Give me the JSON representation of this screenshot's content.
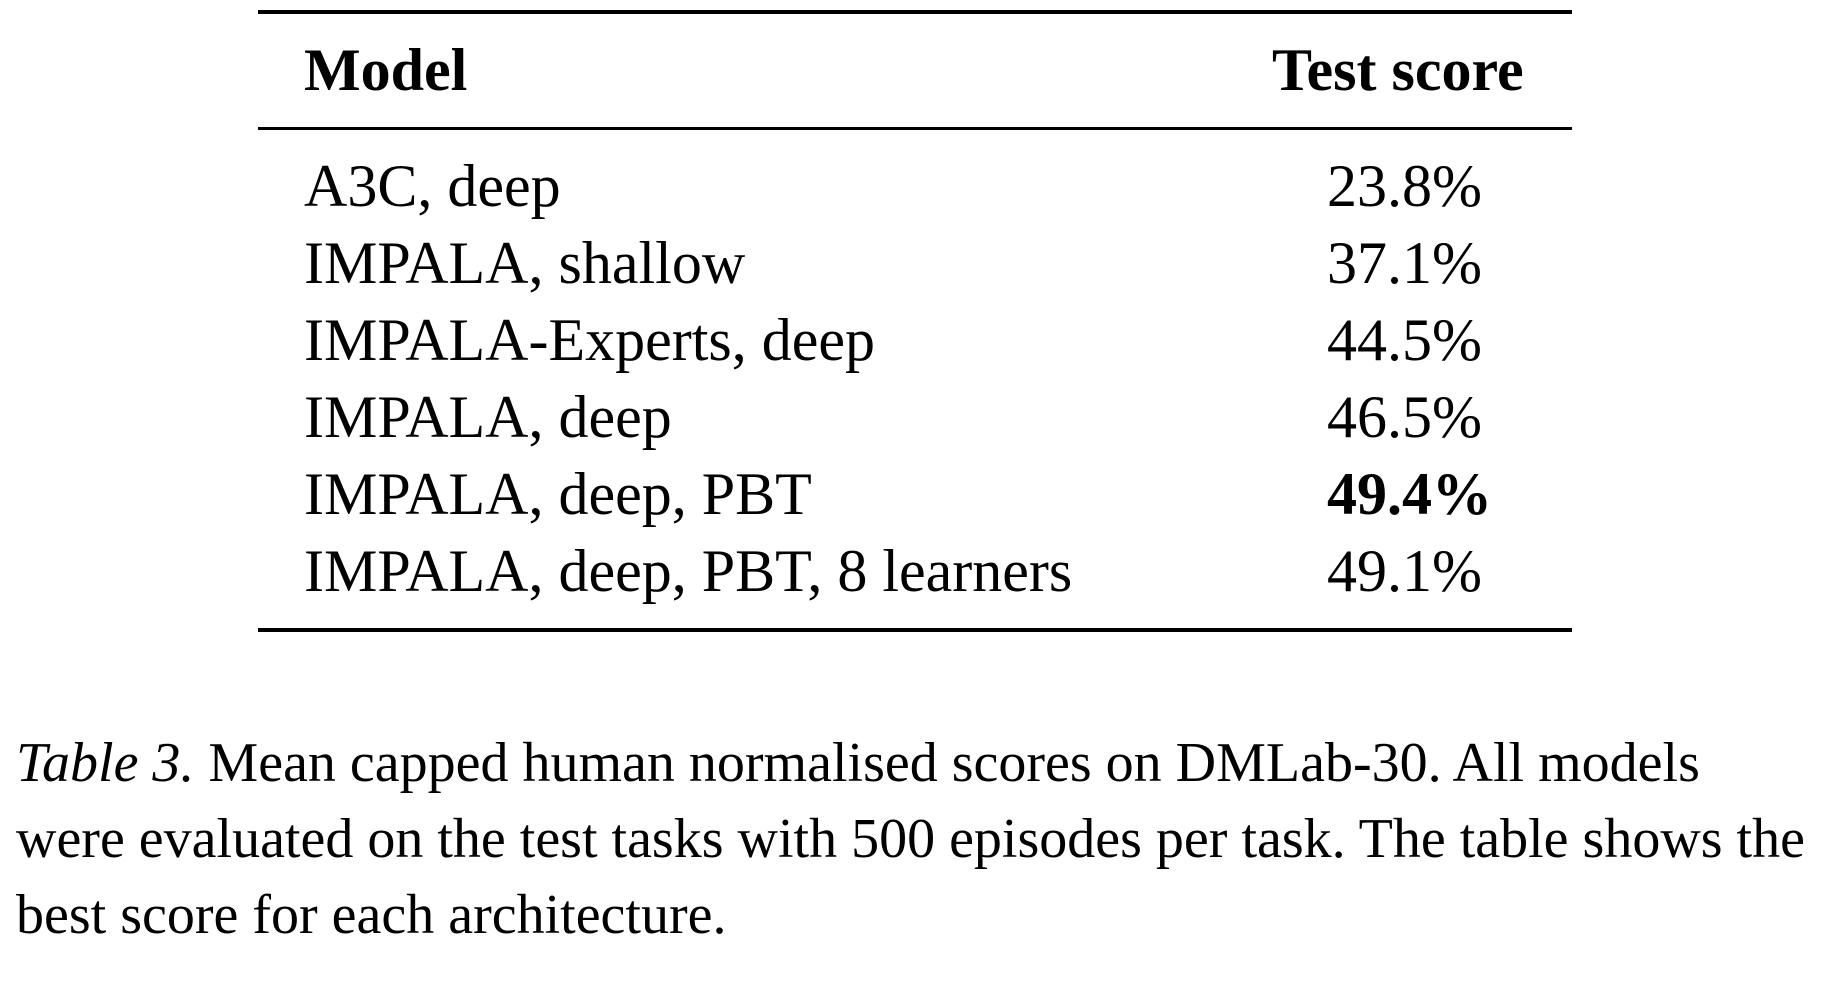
{
  "table": {
    "headers": {
      "model": "Model",
      "score": "Test score"
    },
    "rows": [
      {
        "model": "A3C, deep",
        "score": "23.8%",
        "best": false
      },
      {
        "model": "IMPALA, shallow",
        "score": "37.1%",
        "best": false
      },
      {
        "model": "IMPALA-Experts, deep",
        "score": "44.5%",
        "best": false
      },
      {
        "model": "IMPALA, deep",
        "score": "46.5%",
        "best": false
      },
      {
        "model": "IMPALA, deep, PBT",
        "score": "49.4%",
        "best": true
      },
      {
        "model": "IMPALA, deep, PBT, 8 learners",
        "score": "49.1%",
        "best": false
      }
    ]
  },
  "caption": {
    "label": "Table 3.",
    "text": " Mean capped human normalised scores on DMLab-30. All models were evaluated on the test tasks with 500 episodes per task. The table shows the best score for each architecture."
  }
}
